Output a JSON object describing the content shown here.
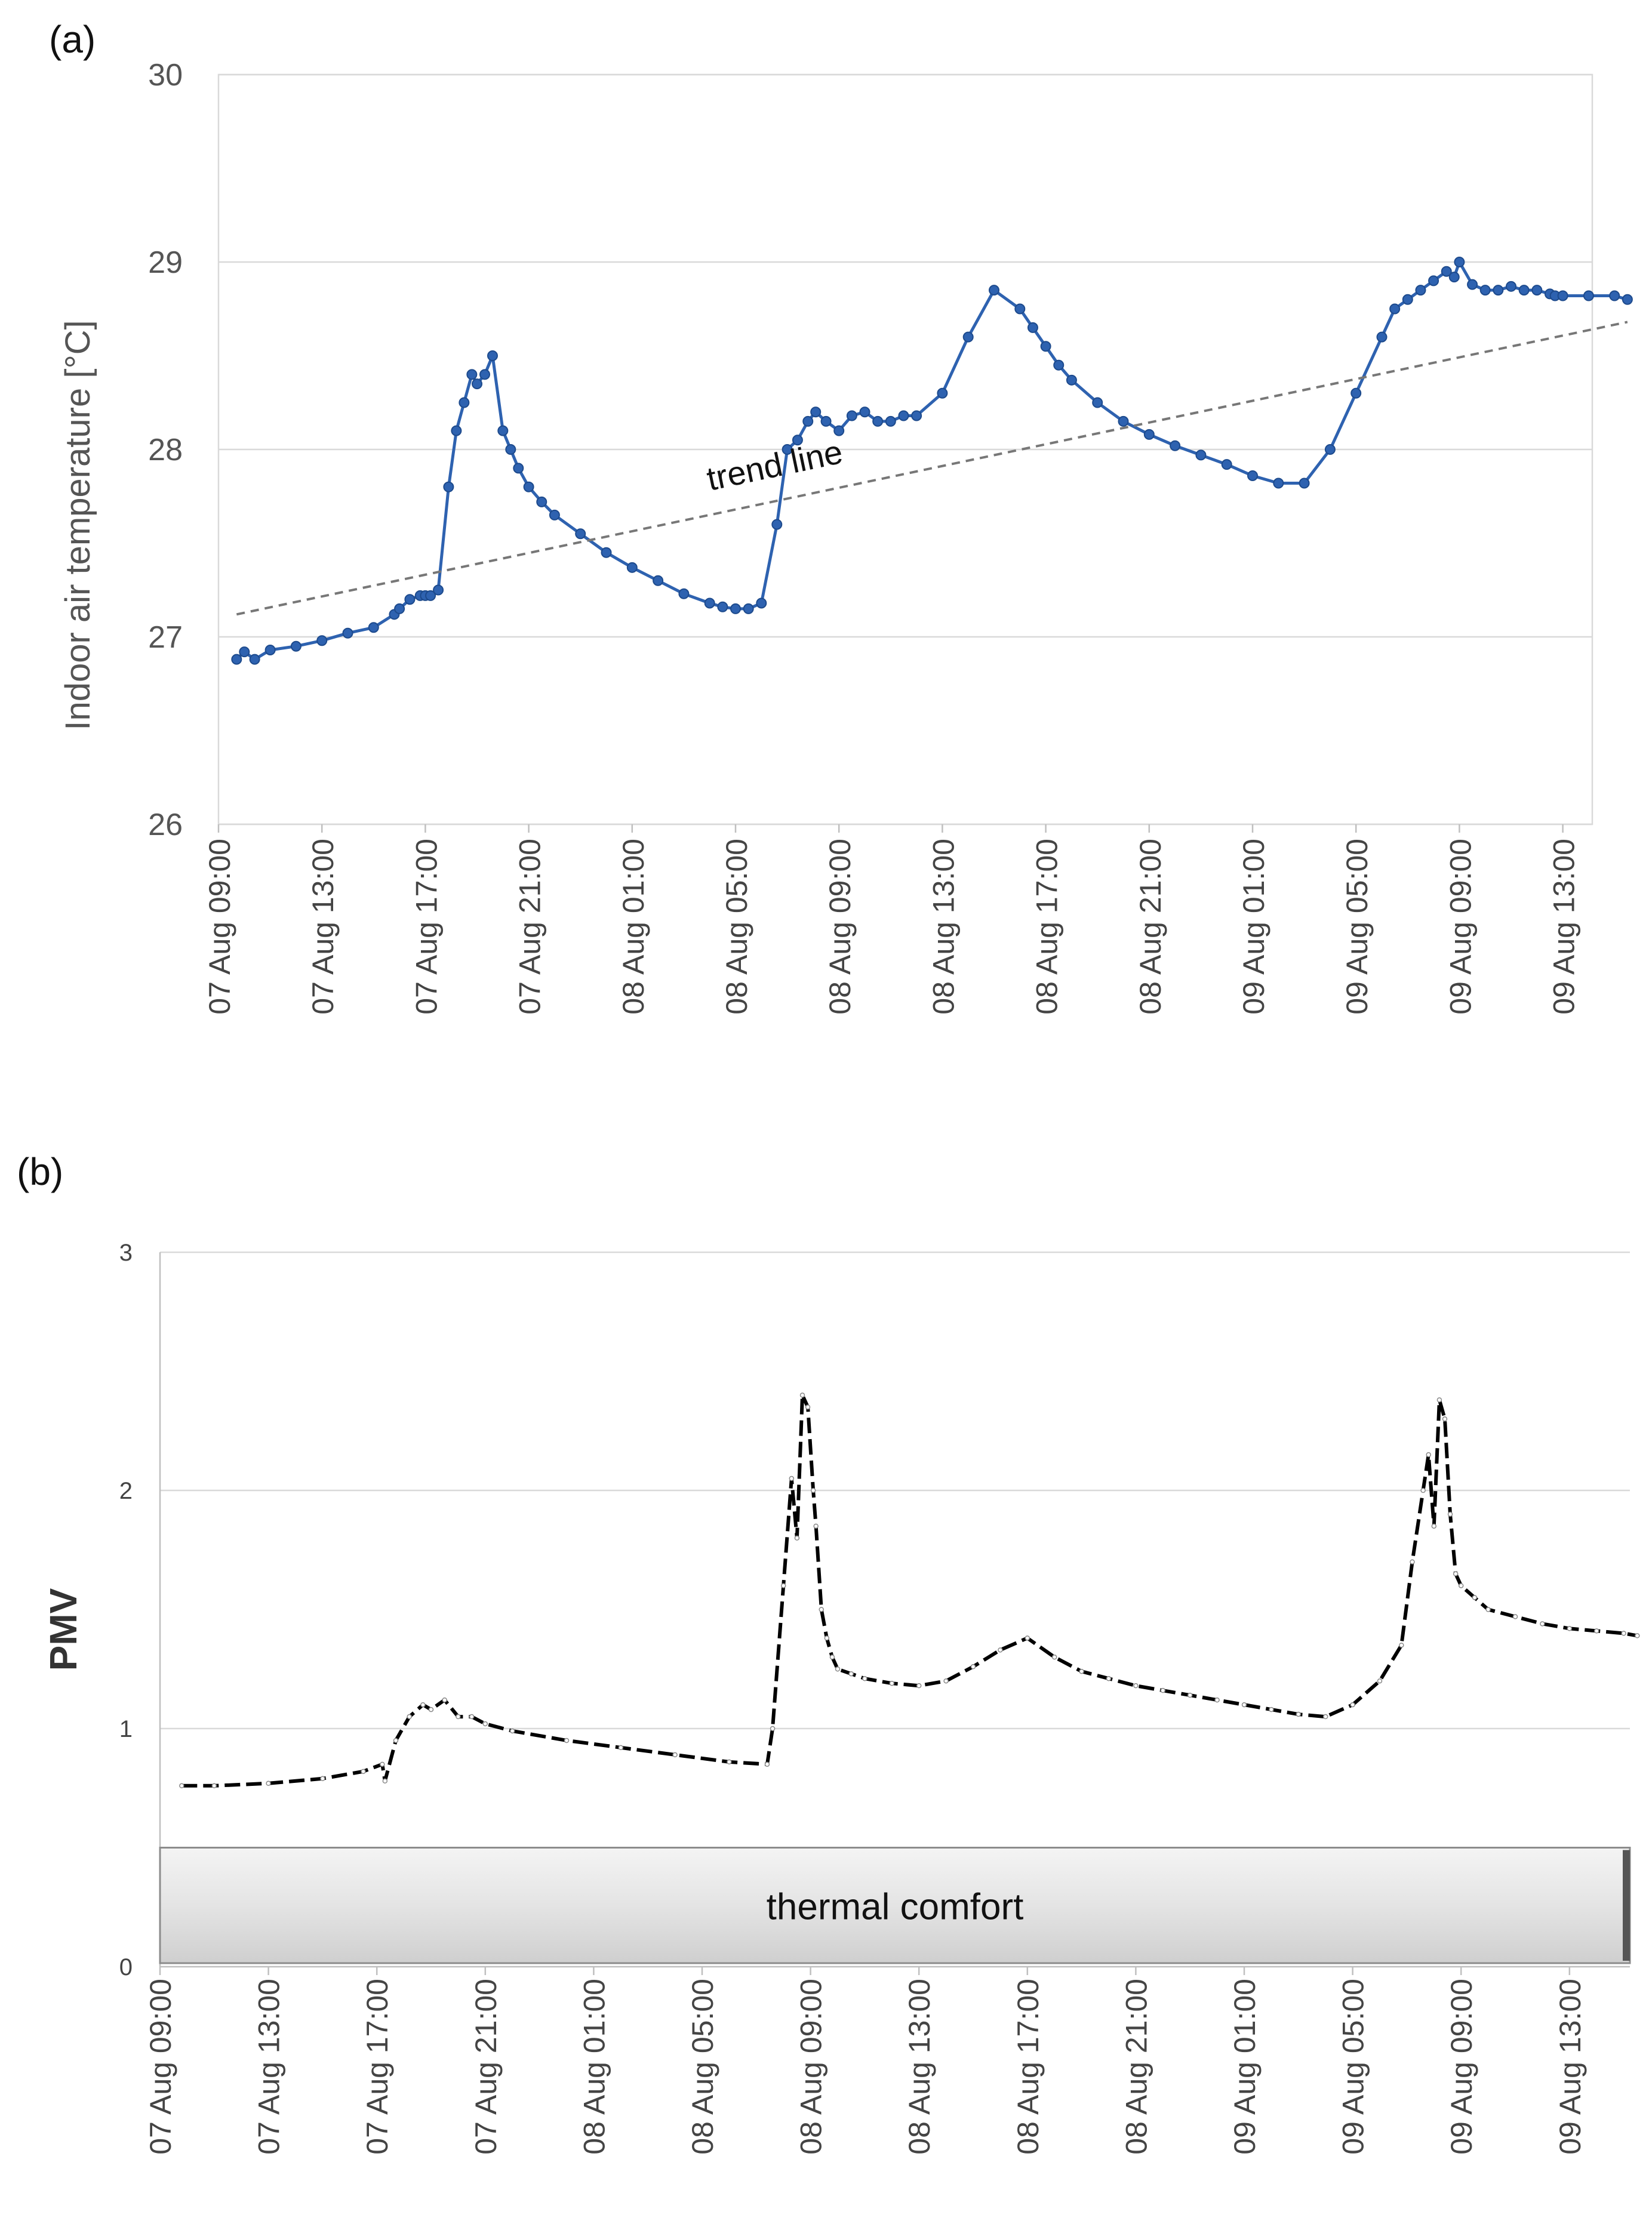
{
  "chart_data": [
    {
      "panel": "(a)",
      "type": "line",
      "title": "",
      "xlabel": "",
      "ylabel": "Indoor air temperature [°C]",
      "ylim": [
        26,
        30
      ],
      "yticks": [
        "26",
        "27",
        "28",
        "29",
        "30"
      ],
      "x_unit": "hours since 07 Aug 09:00",
      "xlim": [
        0,
        54.5
      ],
      "xtick_labels": [
        "07 Aug 09:00",
        "07 Aug 13:00",
        "07 Aug 17:00",
        "07 Aug 21:00",
        "08 Aug 01:00",
        "08 Aug 05:00",
        "08 Aug 09:00",
        "08 Aug 13:00",
        "08 Aug 17:00",
        "08 Aug 21:00",
        "09 Aug 01:00",
        "09 Aug 05:00",
        "09 Aug 09:00",
        "09 Aug 13:00"
      ],
      "grid": true,
      "series": [
        {
          "name": "Indoor air temperature",
          "color": "#2e62b0",
          "x": [
            0.7,
            1,
            1.4,
            2,
            3,
            4,
            5,
            6,
            6.8,
            7,
            7.4,
            7.8,
            8,
            8.2,
            8.5,
            8.9,
            9.2,
            9.5,
            9.8,
            10,
            10.3,
            10.6,
            11,
            11.3,
            11.6,
            12,
            12.5,
            13,
            14,
            15,
            16,
            17,
            18,
            19,
            19.5,
            20,
            20.5,
            21,
            21.6,
            22,
            22.4,
            22.8,
            23.1,
            23.5,
            24,
            24.5,
            25,
            25.5,
            26,
            26.5,
            27,
            28,
            29,
            30,
            31,
            31.5,
            32,
            32.5,
            33,
            34,
            35,
            36,
            37,
            38,
            39,
            40,
            41,
            42,
            43,
            44,
            45,
            45.5,
            46,
            46.5,
            47,
            47.5,
            47.8,
            48,
            48.5,
            49,
            49.5,
            50,
            50.5,
            51,
            51.5,
            51.7,
            52,
            53,
            54,
            54.5
          ],
          "values": [
            26.88,
            26.92,
            26.88,
            26.93,
            26.95,
            26.98,
            27.02,
            27.05,
            27.12,
            27.15,
            27.2,
            27.22,
            27.22,
            27.22,
            27.25,
            27.8,
            28.1,
            28.25,
            28.4,
            28.35,
            28.4,
            28.5,
            28.1,
            28.0,
            27.9,
            27.8,
            27.72,
            27.65,
            27.55,
            27.45,
            27.37,
            27.3,
            27.23,
            27.18,
            27.16,
            27.15,
            27.15,
            27.18,
            27.6,
            28.0,
            28.05,
            28.15,
            28.2,
            28.15,
            28.1,
            28.18,
            28.2,
            28.15,
            28.15,
            28.18,
            28.18,
            28.3,
            28.6,
            28.85,
            28.75,
            28.65,
            28.55,
            28.45,
            28.37,
            28.25,
            28.15,
            28.08,
            28.02,
            27.97,
            27.92,
            27.86,
            27.82,
            27.82,
            28.0,
            28.3,
            28.6,
            28.75,
            28.8,
            28.85,
            28.9,
            28.95,
            28.92,
            29.0,
            28.88,
            28.85,
            28.85,
            28.87,
            28.85,
            28.85,
            28.83,
            28.82,
            28.82,
            28.82,
            28.82,
            28.8
          ]
        },
        {
          "name": "trend line",
          "color": "#777777",
          "style": "dashed",
          "x": [
            0.7,
            54.5
          ],
          "values": [
            27.12,
            28.68
          ]
        }
      ],
      "annotations": [
        {
          "text": "trend line",
          "x": 19,
          "y": 27.78
        }
      ]
    },
    {
      "panel": "(b)",
      "type": "line",
      "title": "",
      "xlabel": "",
      "ylabel": "PMV",
      "ylim": [
        0,
        3
      ],
      "yticks": [
        "0",
        "1",
        "2",
        "3"
      ],
      "x_unit": "hours since 07 Aug 09:00",
      "xlim": [
        0,
        54.5
      ],
      "xtick_labels": [
        "07 Aug 09:00",
        "07 Aug 13:00",
        "07 Aug 17:00",
        "07 Aug 21:00",
        "08 Aug 01:00",
        "08 Aug 05:00",
        "08 Aug 09:00",
        "08 Aug 13:00",
        "08 Aug 17:00",
        "08 Aug 21:00",
        "09 Aug 01:00",
        "09 Aug 05:00",
        "09 Aug 09:00",
        "09 Aug 13:00"
      ],
      "grid": true,
      "band": {
        "label": "thermal comfort",
        "ymin": 0,
        "ymax": 0.5
      },
      "series": [
        {
          "name": "PMV",
          "color": "#000000",
          "style": "dashed",
          "x": [
            0.8,
            2,
            4,
            6,
            7.5,
            8.2,
            8.3,
            8.7,
            9.2,
            9.7,
            10,
            10.5,
            11,
            11.5,
            12,
            13,
            15,
            17,
            19,
            21,
            22.4,
            22.6,
            23,
            23.3,
            23.5,
            23.7,
            23.9,
            24.1,
            24.2,
            24.4,
            24.6,
            24.8,
            25,
            25.5,
            26,
            27,
            28,
            29,
            30,
            31,
            32,
            33,
            34,
            35,
            36,
            37,
            38,
            39,
            40,
            41,
            42,
            43,
            44,
            45,
            45.8,
            46.2,
            46.6,
            46.8,
            47,
            47.2,
            47.4,
            47.6,
            47.8,
            48,
            48.5,
            49,
            50,
            51,
            52,
            53,
            54,
            54.5
          ],
          "values": [
            0.76,
            0.76,
            0.77,
            0.79,
            0.82,
            0.85,
            0.78,
            0.95,
            1.05,
            1.1,
            1.08,
            1.12,
            1.05,
            1.05,
            1.02,
            0.99,
            0.95,
            0.92,
            0.89,
            0.86,
            0.85,
            1.0,
            1.6,
            2.05,
            1.8,
            2.4,
            2.35,
            2.0,
            1.85,
            1.5,
            1.38,
            1.3,
            1.25,
            1.23,
            1.21,
            1.19,
            1.18,
            1.2,
            1.26,
            1.33,
            1.38,
            1.3,
            1.24,
            1.21,
            1.18,
            1.16,
            1.14,
            1.12,
            1.1,
            1.08,
            1.06,
            1.05,
            1.1,
            1.2,
            1.35,
            1.7,
            2.0,
            2.15,
            1.85,
            2.38,
            2.3,
            1.9,
            1.65,
            1.6,
            1.55,
            1.5,
            1.47,
            1.44,
            1.42,
            1.41,
            1.4,
            1.39
          ]
        }
      ]
    }
  ]
}
